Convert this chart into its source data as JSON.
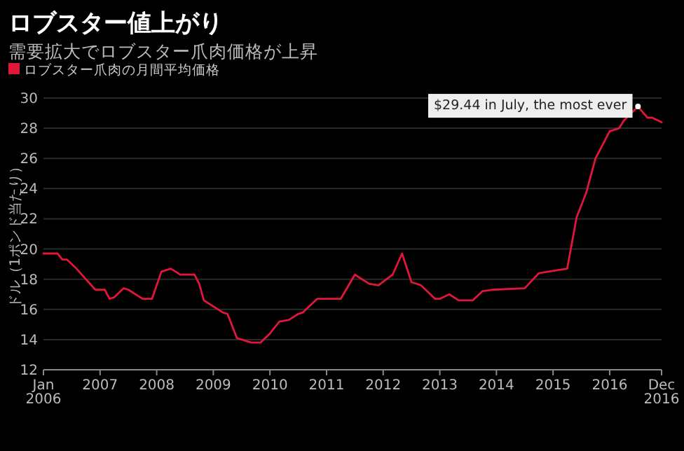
{
  "chart_data": {
    "type": "line",
    "title": "ロブスター値上がり",
    "subtitle": "需要拡大でロブスター爪肉価格が上昇",
    "ylabel": "ドル（1ポンド当たり）",
    "x": [
      "2006-01",
      "2006-04",
      "2006-05",
      "2006-06",
      "2006-08",
      "2006-12",
      "2007-02",
      "2007-03",
      "2007-04",
      "2007-06",
      "2007-07",
      "2007-10",
      "2007-12",
      "2008-02",
      "2008-04",
      "2008-06",
      "2008-09",
      "2008-10",
      "2008-11",
      "2009-01",
      "2009-03",
      "2009-04",
      "2009-06",
      "2009-07",
      "2009-09",
      "2009-11",
      "2010-01",
      "2010-03",
      "2010-05",
      "2010-07",
      "2010-08",
      "2010-11",
      "2011-01",
      "2011-04",
      "2011-07",
      "2011-10",
      "2011-12",
      "2012-03",
      "2012-05",
      "2012-07",
      "2012-09",
      "2012-12",
      "2013-01",
      "2013-03",
      "2013-05",
      "2013-08",
      "2013-10",
      "2013-12",
      "2014-07",
      "2014-10",
      "2014-12",
      "2015-04",
      "2015-06",
      "2015-08",
      "2015-10",
      "2015-11",
      "2016-01",
      "2016-03",
      "2016-04",
      "2016-07",
      "2016-09",
      "2016-10",
      "2016-12"
    ],
    "series": [
      {
        "name": "ロブスター爪肉の月間平均価格",
        "color": "#e0173a",
        "values": [
          19.7,
          19.7,
          19.3,
          19.3,
          18.7,
          17.3,
          17.3,
          16.7,
          16.8,
          17.4,
          17.3,
          16.7,
          16.7,
          18.5,
          18.7,
          18.3,
          18.3,
          17.7,
          16.6,
          16.2,
          15.8,
          15.7,
          14.1,
          14.0,
          13.8,
          13.8,
          14.4,
          15.2,
          15.3,
          15.7,
          15.8,
          16.7,
          16.7,
          16.7,
          18.3,
          17.7,
          17.6,
          18.3,
          19.7,
          17.8,
          17.6,
          16.7,
          16.7,
          17.0,
          16.6,
          16.6,
          17.2,
          17.3,
          17.4,
          18.4,
          18.5,
          18.7,
          22.1,
          23.7,
          26.0,
          26.6,
          27.8,
          28.0,
          28.5,
          29.44,
          28.7,
          28.7,
          28.4
        ]
      }
    ],
    "xlim": [
      "2006-01",
      "2016-12"
    ],
    "xticks": [
      {
        "value": "2006-01",
        "label": "Jan 2006"
      },
      {
        "value": "2007-01",
        "label": "2007"
      },
      {
        "value": "2008-01",
        "label": "2008"
      },
      {
        "value": "2009-01",
        "label": "2009"
      },
      {
        "value": "2010-01",
        "label": "2010"
      },
      {
        "value": "2011-01",
        "label": "2011"
      },
      {
        "value": "2012-01",
        "label": "2012"
      },
      {
        "value": "2013-01",
        "label": "2013"
      },
      {
        "value": "2014-01",
        "label": "2014"
      },
      {
        "value": "2015-01",
        "label": "2015"
      },
      {
        "value": "2016-01",
        "label": "2016"
      },
      {
        "value": "2016-12",
        "label": "Dec 2016"
      }
    ],
    "ylim": [
      12,
      30
    ],
    "yticks": [
      12,
      14,
      16,
      18,
      20,
      22,
      24,
      26,
      28,
      30
    ],
    "grid": "y",
    "legend": "top left",
    "marker": "none",
    "line_style": "solid",
    "annotations": [
      {
        "text": "$29.44 in July, the most ever",
        "x": "2016-07",
        "y": 29.44
      }
    ]
  }
}
